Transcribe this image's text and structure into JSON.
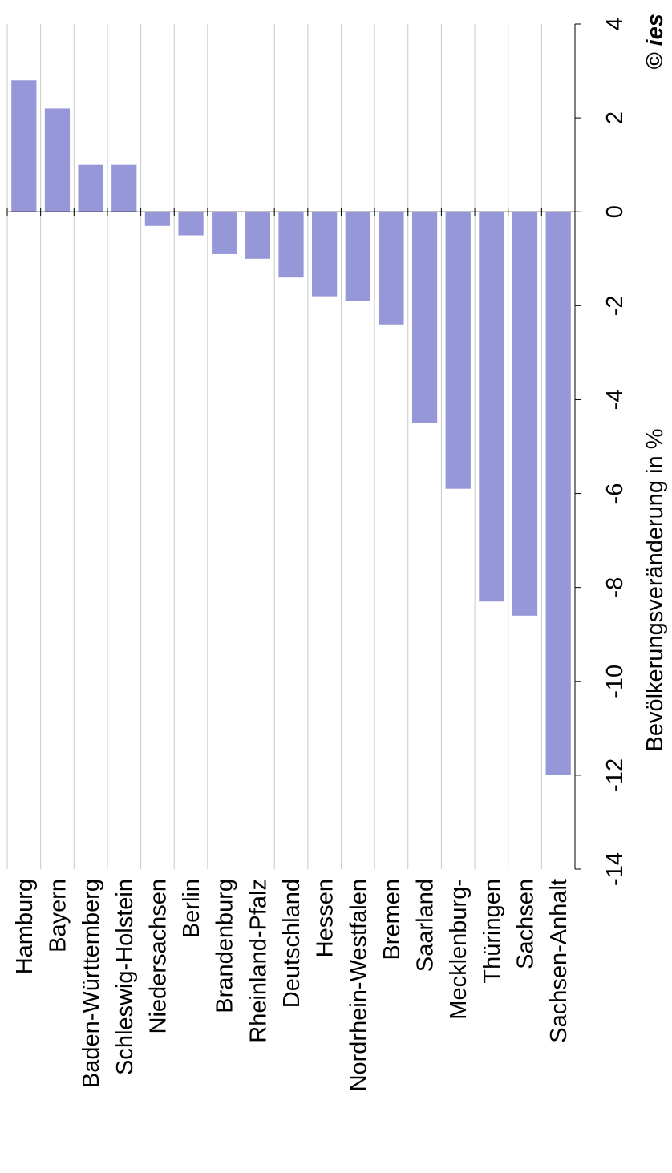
{
  "chart_data": {
    "type": "bar",
    "orientation": "rotated",
    "title": "",
    "xlabel": "",
    "ylabel": "Bevölkerungsveränderung in %",
    "ylim": [
      -14,
      4
    ],
    "yticks": [
      4,
      2,
      0,
      -2,
      -4,
      -6,
      -8,
      -10,
      -12,
      -14
    ],
    "grid": true,
    "categories": [
      "Hamburg",
      "Bayern",
      "Baden-Württemberg",
      "Schleswig-Holstein",
      "Niedersachsen",
      "Berlin",
      "Brandenburg",
      "Rheinland-Pfalz",
      "Deutschland",
      "Hessen",
      "Nordrhein-Westfalen",
      "Bremen",
      "Saarland",
      "Mecklenburg-",
      "Thüringen",
      "Sachsen",
      "Sachsen-Anhalt"
    ],
    "values": [
      2.8,
      2.2,
      1.0,
      1.0,
      -0.3,
      -0.5,
      -0.9,
      -1.0,
      -1.4,
      -1.8,
      -1.9,
      -2.4,
      -4.5,
      -5.9,
      -8.3,
      -8.6,
      -12.0
    ],
    "colors": {
      "bar": "#9597d8",
      "grid": "#c8c8c8",
      "axis": "#000000"
    }
  },
  "copyright": "© ies"
}
